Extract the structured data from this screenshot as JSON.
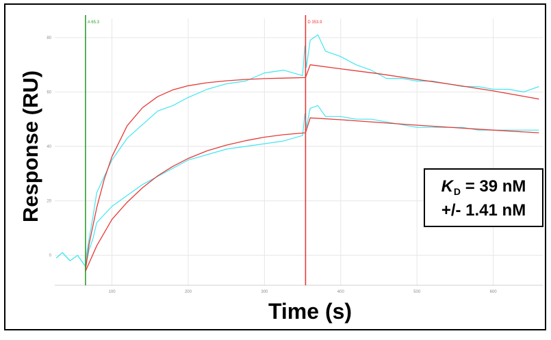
{
  "chart_data": {
    "type": "line",
    "title": "",
    "xlabel": "Time (s)",
    "ylabel": "Response (RU)",
    "xlim": [
      25,
      665
    ],
    "ylim": [
      -11,
      87
    ],
    "x_ticks": [
      "100",
      "200",
      "300",
      "400",
      "500",
      "600"
    ],
    "y_ticks": [
      "0",
      "20",
      "40",
      "60",
      "80"
    ],
    "grid": true,
    "markers": [
      {
        "label": "A 65.3",
        "x": 65.3,
        "color": "#2e9b2e"
      },
      {
        "label": "D 353.9",
        "x": 353.9,
        "color": "#e53935"
      }
    ],
    "series": [
      {
        "style": "raw",
        "color": "#3fe6f2",
        "x": [
          27,
          35,
          45,
          55,
          60,
          65,
          67,
          70,
          75,
          80,
          90,
          100,
          110,
          120,
          140,
          160,
          180,
          200,
          225,
          250,
          275,
          300,
          325,
          350,
          353,
          355,
          360,
          370,
          380,
          400,
          420,
          440,
          460,
          480,
          500,
          520,
          540,
          560,
          580,
          600,
          620,
          640,
          660
        ],
        "y": [
          -1,
          1,
          -2,
          0,
          -2,
          -4,
          1,
          6,
          14,
          23,
          29,
          35,
          39,
          43,
          48,
          53,
          55,
          58,
          61,
          63,
          64,
          67,
          68,
          66,
          77,
          69,
          79,
          81,
          75,
          73,
          70,
          68,
          65,
          65,
          64,
          64,
          63,
          62,
          62,
          61,
          61,
          60,
          62
        ]
      },
      {
        "style": "raw",
        "color": "#3fe6f2",
        "x": [
          27,
          35,
          45,
          55,
          60,
          65,
          67,
          70,
          75,
          80,
          90,
          100,
          110,
          120,
          140,
          160,
          180,
          200,
          225,
          250,
          275,
          300,
          325,
          350,
          353,
          355,
          360,
          370,
          380,
          400,
          420,
          440,
          460,
          480,
          500,
          520,
          540,
          560,
          580,
          600,
          620,
          640,
          660
        ],
        "y": [
          -1,
          1,
          -2,
          0,
          -2,
          -4,
          -2,
          2,
          6,
          12,
          15,
          18,
          20,
          22,
          26,
          29,
          32,
          35,
          37,
          39,
          40,
          41,
          42,
          44,
          52,
          47,
          54,
          55,
          51,
          51,
          50,
          50,
          49,
          48,
          47,
          47,
          47,
          47,
          46,
          46,
          46,
          46,
          46
        ]
      },
      {
        "style": "fit",
        "color": "#e53935",
        "x": [
          65,
          70,
          80,
          90,
          100,
          120,
          140,
          160,
          180,
          200,
          225,
          250,
          275,
          300,
          325,
          353.9,
          360,
          400,
          450,
          500,
          550,
          600,
          660
        ],
        "y": [
          -6,
          4,
          17.5,
          28,
          36.3,
          47.6,
          54.2,
          58.3,
          60.8,
          62.3,
          63.4,
          64.1,
          64.6,
          64.9,
          65.1,
          65.3,
          70,
          68.5,
          66.7,
          64.6,
          62.6,
          60.4,
          57.4
        ]
      },
      {
        "style": "fit",
        "color": "#e53935",
        "x": [
          65,
          80,
          100,
          120,
          140,
          160,
          180,
          200,
          225,
          250,
          275,
          300,
          325,
          353.9,
          360,
          400,
          450,
          500,
          550,
          600,
          660
        ],
        "y": [
          -6,
          3.5,
          13.2,
          19.5,
          24.8,
          29.2,
          32.7,
          35.6,
          38.4,
          40.5,
          42.1,
          43.4,
          44.3,
          45,
          50.5,
          49.8,
          48.8,
          47.8,
          46.9,
          46,
          45
        ]
      }
    ],
    "annotation": {
      "kd_symbol": "K",
      "kd_subscript": "D",
      "kd_value": "= 39 nM",
      "error": "+/- 1.41 nM"
    }
  }
}
